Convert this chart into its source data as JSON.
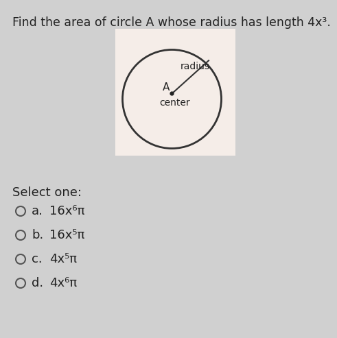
{
  "title": "Find the area of circle A whose radius has length 4x³.",
  "title_fontsize": 12.5,
  "bg_color": "#d0d0d0",
  "circle_box_color": "#f5ede8",
  "circle_color": "#f5ede8",
  "circle_edge_color": "#333333",
  "circle_linewidth": 2.0,
  "center_label": "A",
  "center_sublabel": "center",
  "radius_label": "radius",
  "select_one_text": "Select one:",
  "options": [
    {
      "letter": "a.",
      "text": "16x⁶π"
    },
    {
      "letter": "b.",
      "text": "16x⁵π"
    },
    {
      "letter": "c.",
      "text": "4x⁵π"
    },
    {
      "letter": "d.",
      "text": "4x⁶π"
    }
  ],
  "option_fontsize": 13,
  "select_fontsize": 13,
  "text_color": "#222222",
  "radio_color": "#555555"
}
